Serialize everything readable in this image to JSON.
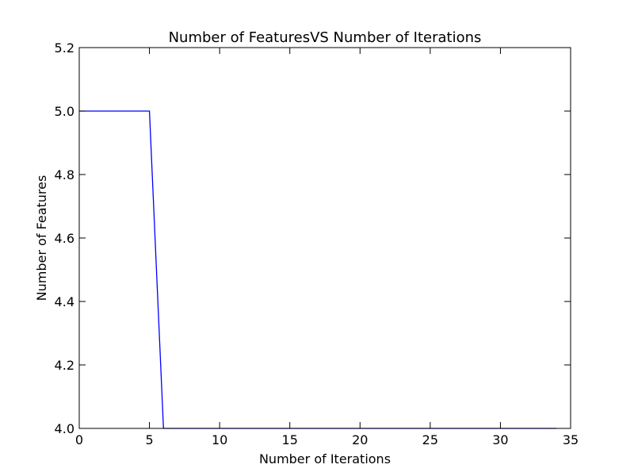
{
  "chart_data": {
    "type": "line",
    "title": "Number of FeaturesVS Number of Iterations",
    "xlabel": "Number of Iterations",
    "ylabel": "Number of Features",
    "xlim": [
      0,
      35
    ],
    "ylim": [
      4.0,
      5.2
    ],
    "xticks": [
      0,
      5,
      10,
      15,
      20,
      25,
      30,
      35
    ],
    "yticks": [
      4.0,
      4.2,
      4.4,
      4.6,
      4.8,
      5.0,
      5.2
    ],
    "xtick_labels": [
      "0",
      "5",
      "10",
      "15",
      "20",
      "25",
      "30",
      "35"
    ],
    "ytick_labels": [
      "4.0",
      "4.2",
      "4.4",
      "4.6",
      "4.8",
      "5.0",
      "5.2"
    ],
    "grid": false,
    "series": [
      {
        "color": "#0000ff",
        "x": [
          0,
          1,
          2,
          3,
          4,
          5,
          6,
          7,
          8,
          9,
          10,
          11,
          12,
          13,
          14,
          15,
          16,
          17,
          18,
          19,
          20,
          21,
          22,
          23,
          24,
          25,
          26,
          27,
          28,
          29,
          30,
          31,
          32,
          33,
          34
        ],
        "y": [
          5,
          5,
          5,
          5,
          5,
          5,
          4,
          4,
          4,
          4,
          4,
          4,
          4,
          4,
          4,
          4,
          4,
          4,
          4,
          4,
          4,
          4,
          4,
          4,
          4,
          4,
          4,
          4,
          4,
          4,
          4,
          4,
          4,
          4,
          4
        ]
      }
    ]
  }
}
